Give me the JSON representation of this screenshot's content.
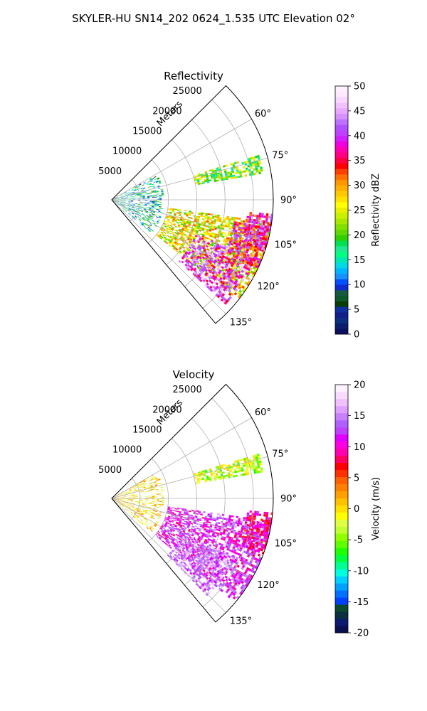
{
  "figure": {
    "suptitle": "SKYLER-HU  SN14_202  0624_1.535 UTC Elevation 02°"
  },
  "chart_data": [
    {
      "type": "heatmap",
      "subtype": "polar-sector",
      "title": "Reflectivity",
      "rlabel": "Meters",
      "rticks": [
        5000,
        10000,
        15000,
        20000,
        25000
      ],
      "rlim": [
        0,
        28500
      ],
      "theta_direction": "clockwise",
      "theta_zero": "north",
      "thetalim_deg": [
        45,
        140
      ],
      "thetaticks_deg": [
        60,
        75,
        90,
        105,
        120,
        135
      ],
      "thetatick_labels": [
        "60°",
        "75°",
        "90°",
        "105°",
        "120°",
        "135°"
      ],
      "colorbar": {
        "label": "Reflectivity dBZ",
        "vmin": 0,
        "vmax": 50,
        "ticks": [
          0,
          5,
          10,
          15,
          20,
          25,
          30,
          35,
          40,
          45,
          50
        ],
        "colormap": "pyart_NWSRef"
      },
      "grid": true,
      "features": [
        {
          "theta": [
            98,
            128
          ],
          "r": [
            10000,
            28500
          ],
          "value": 26
        },
        {
          "theta": [
            112,
            132
          ],
          "r": [
            16000,
            27000
          ],
          "value": 41
        },
        {
          "theta": [
            100,
            115
          ],
          "r": [
            22000,
            28500
          ],
          "value": 36
        },
        {
          "theta": [
            95,
            108
          ],
          "r": [
            24000,
            28500
          ],
          "value": 38
        },
        {
          "theta": [
            60,
            130
          ],
          "r": [
            0,
            9000
          ],
          "value": 14
        },
        {
          "theta": [
            73,
            80
          ],
          "r": [
            15000,
            27000
          ],
          "value": 22
        }
      ]
    },
    {
      "type": "heatmap",
      "subtype": "polar-sector",
      "title": "Velocity",
      "rlabel": "Meters",
      "rticks": [
        5000,
        10000,
        15000,
        20000,
        25000
      ],
      "rlim": [
        0,
        28500
      ],
      "theta_direction": "clockwise",
      "theta_zero": "north",
      "thetalim_deg": [
        45,
        140
      ],
      "thetaticks_deg": [
        60,
        75,
        90,
        105,
        120,
        135
      ],
      "thetatick_labels": [
        "60°",
        "75°",
        "90°",
        "105°",
        "120°",
        "135°"
      ],
      "colorbar": {
        "label": "Velocity (m/s)",
        "vmin": -20,
        "vmax": 20,
        "ticks": [
          -20,
          -15,
          -10,
          -5,
          0,
          5,
          10,
          15,
          20
        ],
        "colormap": "pyart_BuDRd18"
      },
      "grid": true,
      "features": [
        {
          "theta": [
            98,
            130
          ],
          "r": [
            10000,
            28500
          ],
          "value": 12
        },
        {
          "theta": [
            115,
            135
          ],
          "r": [
            14000,
            24000
          ],
          "value": 15
        },
        {
          "theta": [
            95,
            110
          ],
          "r": [
            24000,
            28500
          ],
          "value": 9
        },
        {
          "theta": [
            60,
            130
          ],
          "r": [
            0,
            9000
          ],
          "value": 0
        },
        {
          "theta": [
            73,
            80
          ],
          "r": [
            15000,
            27000
          ],
          "value": -3
        }
      ]
    }
  ],
  "colormaps": {
    "pyart_NWSRef": [
      "#0c0f5e",
      "#0c1f6e",
      "#0c2f80",
      "#101f8a",
      "#1030a0",
      "#083d08",
      "#0c5a2a",
      "#155a40",
      "#0e2ad0",
      "#0050ff",
      "#1a90ff",
      "#00b4ff",
      "#00d8e6",
      "#00e8b0",
      "#00ff80",
      "#20e890",
      "#00e050",
      "#30d000",
      "#60d800",
      "#80e000",
      "#a8e800",
      "#c8f000",
      "#e8f000",
      "#ffff00",
      "#ffe000",
      "#ffc800",
      "#ffb000",
      "#ff9800",
      "#ff7000",
      "#ff4000",
      "#ff0000",
      "#ff0040",
      "#ff0080",
      "#ff00b0",
      "#f000e0",
      "#d020ff",
      "#c040ff",
      "#b050ff",
      "#c070ff",
      "#d890ff",
      "#e8a8ff",
      "#f0c0ff",
      "#f8d8ff",
      "#fde8ff",
      "#fff0ff"
    ],
    "pyart_BuDRd18": [
      "#0a0f4e",
      "#0c1a70",
      "#0a3040",
      "#0a4a30",
      "#0040ff",
      "#0070ff",
      "#00a0ff",
      "#00d0ff",
      "#00ffe0",
      "#00ff90",
      "#00ff40",
      "#20ff00",
      "#60ff00",
      "#90ff00",
      "#c0ff30",
      "#e0ff40",
      "#ffff00",
      "#ffe000",
      "#ffc000",
      "#ffa000",
      "#ff8000",
      "#ff6000",
      "#ff3000",
      "#ff0000",
      "#ff0060",
      "#ff00b0",
      "#ff00e0",
      "#e000ff",
      "#c040ff",
      "#b060ff",
      "#c880ff",
      "#e0a0ff",
      "#f0c0ff",
      "#f8dcff",
      "#fdf0ff"
    ]
  }
}
